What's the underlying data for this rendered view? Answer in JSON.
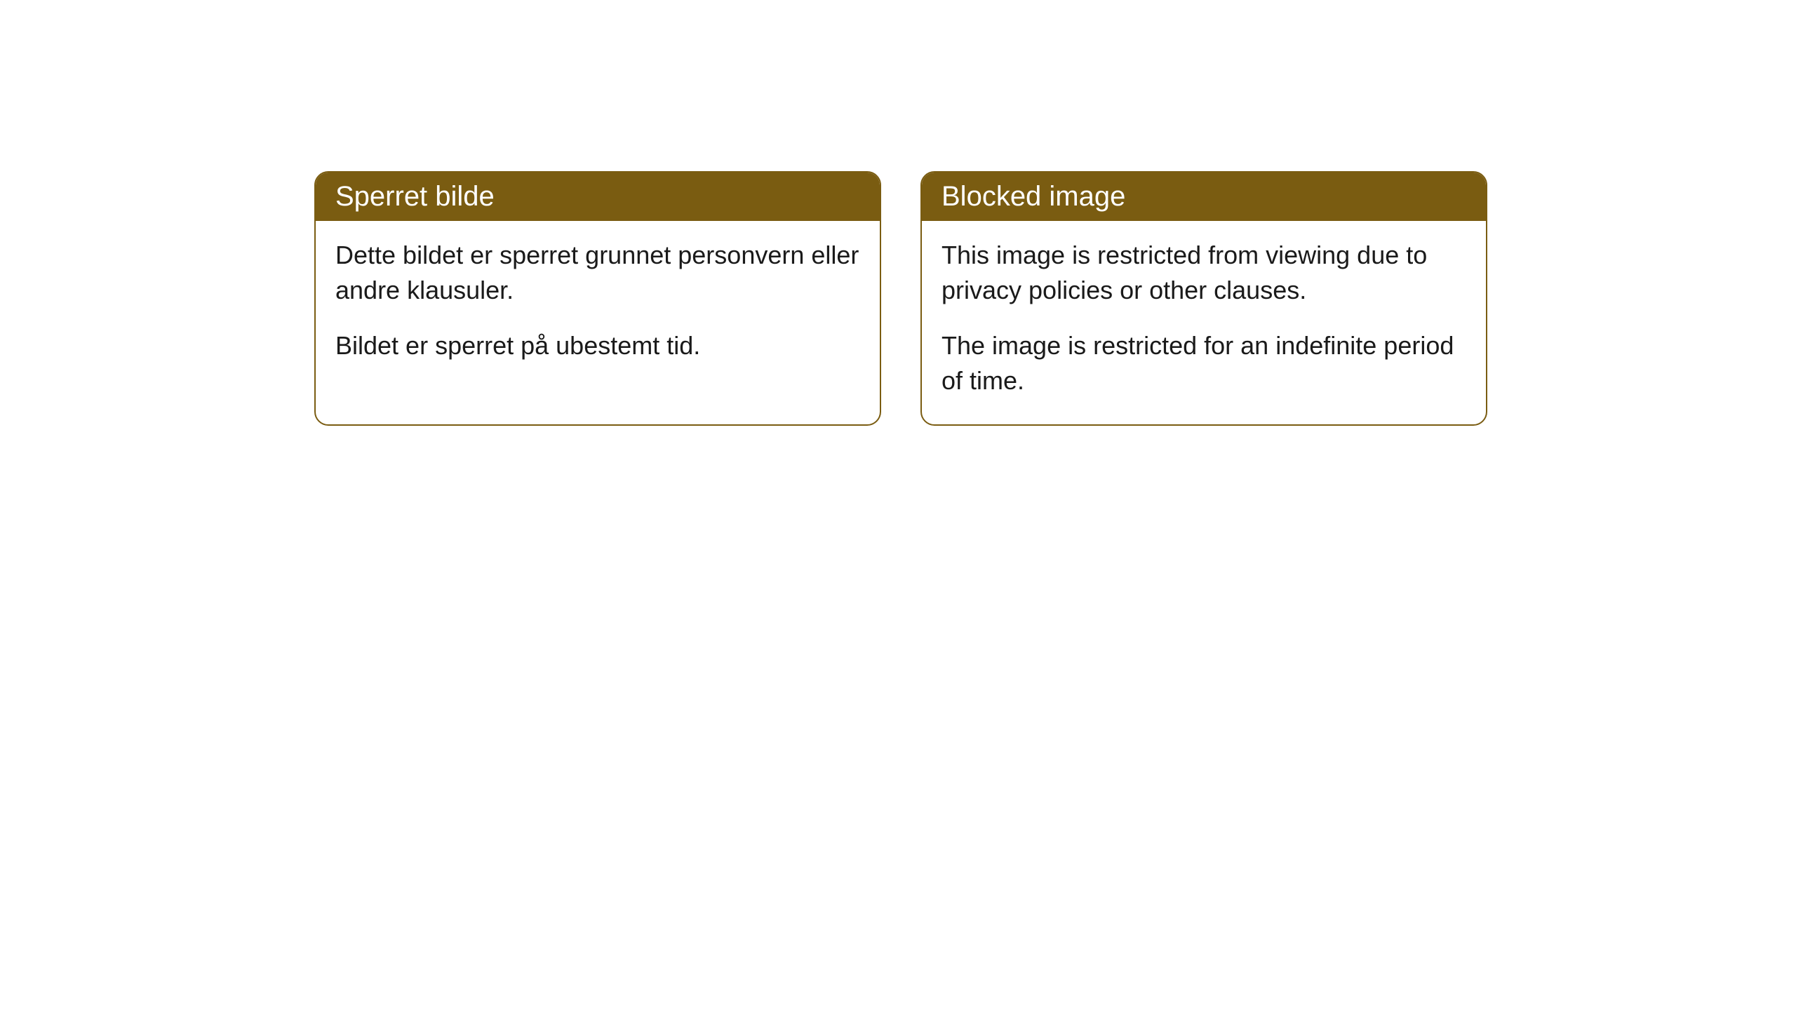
{
  "cards": [
    {
      "title": "Sperret bilde",
      "paragraph1": "Dette bildet er sperret grunnet personvern eller andre klausuler.",
      "paragraph2": "Bildet er sperret på ubestemt tid."
    },
    {
      "title": "Blocked image",
      "paragraph1": "This image is restricted from viewing due to privacy policies or other clauses.",
      "paragraph2": "The image is restricted for an indefinite period of time."
    }
  ],
  "styling": {
    "header_background": "#7a5c11",
    "header_text_color": "#ffffff",
    "border_color": "#7a5c11",
    "body_background": "#ffffff",
    "body_text_color": "#1a1a1a",
    "border_radius": 20,
    "title_fontsize": 40,
    "body_fontsize": 36
  }
}
